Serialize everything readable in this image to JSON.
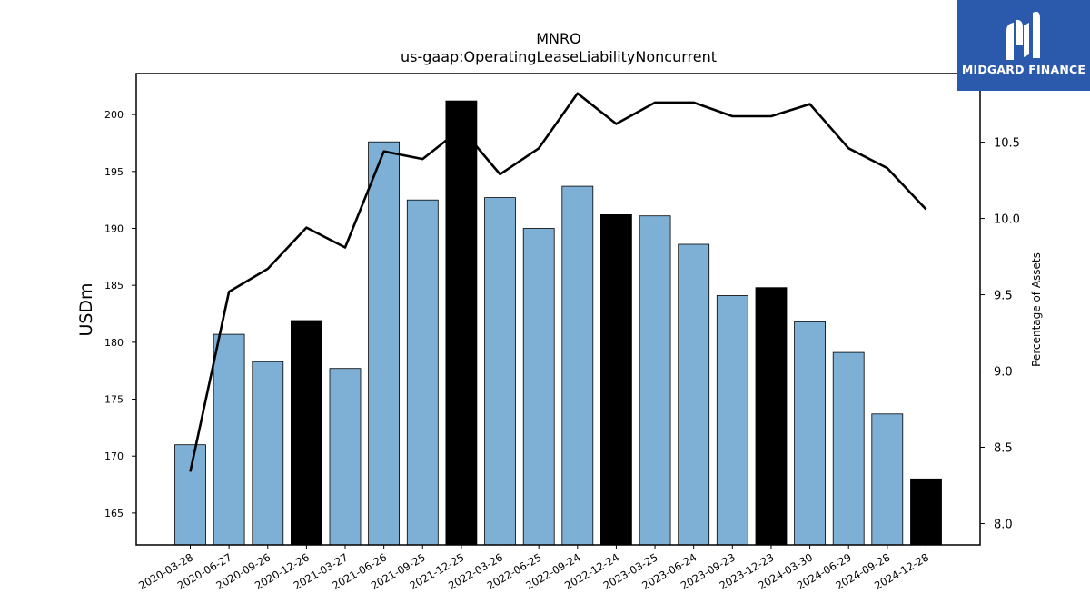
{
  "brand": {
    "name": "MIDGARD FINANCE",
    "bg_color": "#2b5aad",
    "icon": "midgard-logo-icon"
  },
  "chart_data": {
    "type": "bar",
    "title": "MNRO",
    "subtitle": "us-gaap:OperatingLeaseLiabilityNoncurrent",
    "ylabel": "USDm",
    "y2label": "Percentage of Assets",
    "categories": [
      "2020-03-28",
      "2020-06-27",
      "2020-09-26",
      "2020-12-26",
      "2021-03-27",
      "2021-06-26",
      "2021-09-25",
      "2021-12-25",
      "2022-03-26",
      "2022-06-25",
      "2022-09-24",
      "2022-12-24",
      "2023-03-25",
      "2023-06-24",
      "2023-09-23",
      "2023-12-23",
      "2024-03-30",
      "2024-06-29",
      "2024-09-28",
      "2024-12-28"
    ],
    "series": [
      {
        "type": "bar",
        "axis": "left",
        "values": [
          171.0,
          180.7,
          178.3,
          181.9,
          177.7,
          197.6,
          192.5,
          201.2,
          192.7,
          190.0,
          193.7,
          191.2,
          191.1,
          188.6,
          184.1,
          184.8,
          181.8,
          179.1,
          173.7,
          168.0
        ],
        "highlight": [
          false,
          false,
          false,
          true,
          false,
          false,
          false,
          true,
          false,
          false,
          false,
          true,
          false,
          false,
          false,
          true,
          false,
          false,
          false,
          true
        ]
      },
      {
        "type": "line",
        "axis": "right",
        "values": [
          8.34,
          9.52,
          9.67,
          9.94,
          9.81,
          10.44,
          10.39,
          10.59,
          10.29,
          10.46,
          10.82,
          10.62,
          10.76,
          10.76,
          10.67,
          10.67,
          10.75,
          10.46,
          10.33,
          10.06
        ]
      }
    ],
    "ylim": [
      162.2,
      203.6
    ],
    "y2lim": [
      7.86,
      10.95
    ],
    "yticks": [
      165,
      170,
      175,
      180,
      185,
      190,
      195,
      200
    ],
    "y2ticks": [
      8.0,
      8.5,
      9.0,
      9.5,
      10.0,
      10.5
    ],
    "colors": {
      "bar": "#7eb0d5",
      "bar_highlight": "#000000",
      "bar_edge": "#000000",
      "line": "#000000"
    },
    "grid": false,
    "legend": "none"
  }
}
